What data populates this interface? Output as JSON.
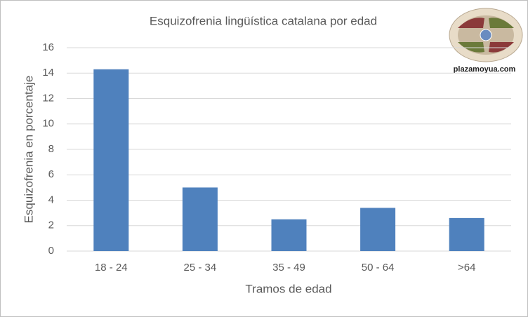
{
  "chart_data": {
    "type": "bar",
    "title": "Esquizofrenia lingüística catalana por edad",
    "x_label": "Tramos de edad",
    "y_label": "Esquizofrenia en porcentaje",
    "categories": [
      "18 - 24",
      "25 - 34",
      "35 - 49",
      "50 - 64",
      ">64"
    ],
    "values": [
      14.3,
      5.0,
      2.5,
      3.4,
      2.6
    ],
    "color": "#4f81bd",
    "ylim": [
      0,
      16
    ],
    "yticks": [
      0,
      2,
      4,
      6,
      8,
      10,
      12,
      14,
      16
    ],
    "grid": true,
    "watermark": "plazamoyua.com"
  }
}
